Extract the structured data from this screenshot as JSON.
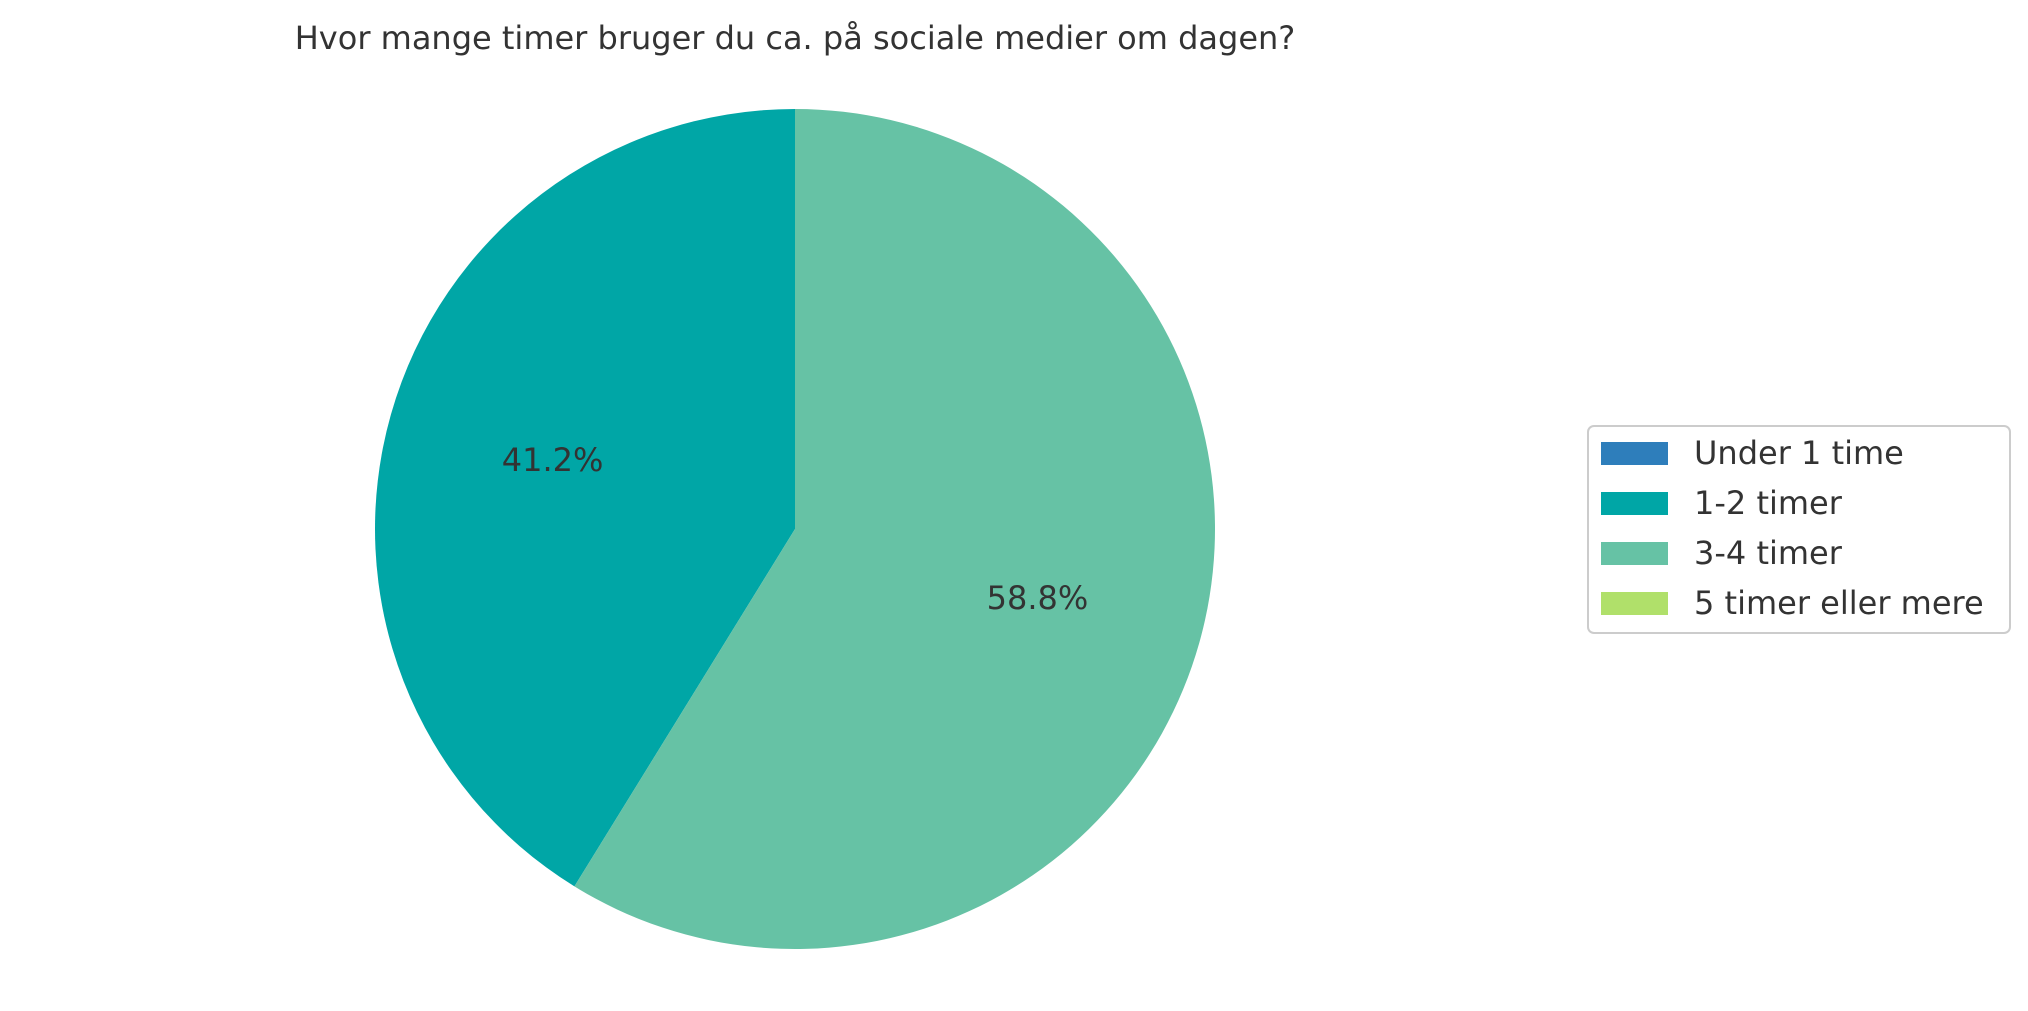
{
  "chart_data": {
    "type": "pie",
    "title": "Hvor mange timer bruger du ca. på sociale medier om dagen?",
    "unit": "%",
    "categories": [
      "Under 1 time",
      "1-2 timer",
      "3-4 timer",
      "5 timer eller mere"
    ],
    "values": [
      0,
      41.2,
      58.8,
      0
    ],
    "labels": [
      "",
      "41.2%",
      "58.8%",
      ""
    ],
    "colors": [
      "#2e7ebb",
      "#00a6a6",
      "#66c2a5",
      "#b0e06a"
    ],
    "start_angle_deg": 90,
    "direction": "counterclockwise",
    "legend": {
      "placement": "right"
    }
  }
}
